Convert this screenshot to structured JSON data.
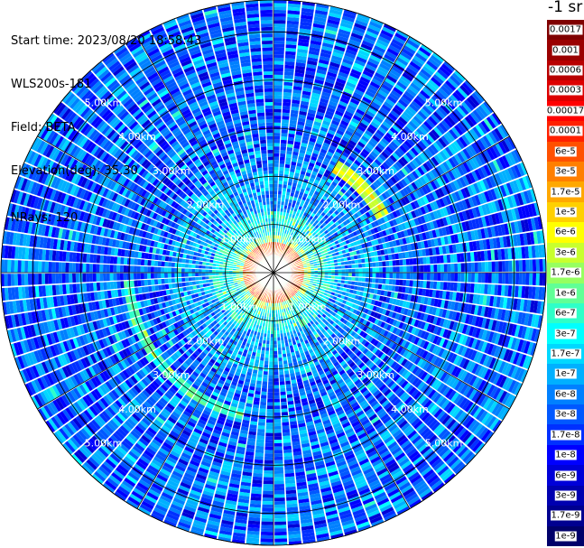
{
  "info": {
    "start_time": "Start time: 2023/08/20 18:58:43",
    "device": "WLS200s-181",
    "field": "Field: BETA",
    "elevation": "Elevation(deg): 35.30",
    "nrays": "NRays: 120"
  },
  "colorbar": {
    "unit": "-1 sr",
    "labels": [
      "0.0017",
      "0.001",
      "0.0006",
      "0.0003",
      "0.00017",
      "0.0001",
      "6e-5",
      "3e-5",
      "1.7e-5",
      "1e-5",
      "6e-6",
      "3e-6",
      "1.7e-6",
      "1e-6",
      "6e-7",
      "3e-7",
      "1.7e-7",
      "1e-7",
      "6e-8",
      "3e-8",
      "1.7e-8",
      "1e-8",
      "6e-9",
      "3e-9",
      "1.7e-9",
      "1e-9"
    ],
    "colors": [
      "#7f0000",
      "#9a0000",
      "#b80000",
      "#dd0000",
      "#ff0000",
      "#ff2000",
      "#ff5000",
      "#ff7f00",
      "#ffa800",
      "#ffd000",
      "#ffff00",
      "#c8ff2e",
      "#96ff60",
      "#60ff96",
      "#2effc8",
      "#00ffff",
      "#00d8ff",
      "#00b0ff",
      "#0080ff",
      "#0058ff",
      "#0030ff",
      "#0000ff",
      "#0000d8",
      "#0000b0",
      "#000090",
      "#00006a"
    ]
  },
  "chart_data": {
    "type": "heatmap",
    "plot": "PPI polar scan of lidar backscatter (BETA)",
    "rays": 120,
    "range_labels": [
      "1.00km",
      "2.00km",
      "3.00km",
      "4.00km",
      "5.00km",
      "6.00km"
    ],
    "range_km_max": 6,
    "colorbar_labels": [
      "0.0017",
      "0.001",
      "0.0006",
      "0.0003",
      "0.00017",
      "0.0001",
      "6e-5",
      "3e-5",
      "1.7e-5",
      "1e-5",
      "6e-6",
      "3e-6",
      "1.7e-6",
      "1e-6",
      "6e-7",
      "3e-7",
      "1.7e-7",
      "1e-7",
      "6e-8",
      "3e-8",
      "1.7e-8",
      "1e-8",
      "6e-9",
      "3e-9",
      "1.7e-9",
      "1e-9"
    ],
    "colorbar_unit": "-1 sr",
    "features": [
      {
        "name": "near-field high backscatter ring",
        "range_km": [
          0.25,
          1.0
        ],
        "level": "3e-5 to 1e-4"
      },
      {
        "name": "arc feature NE",
        "range_km": [
          3.1,
          3.5
        ],
        "level": "1e-5 to 3e-6"
      },
      {
        "name": "arc feature SW",
        "range_km": [
          3.6,
          4.0
        ],
        "level": "1.7e-7 to 3e-7"
      }
    ],
    "grid": true
  }
}
